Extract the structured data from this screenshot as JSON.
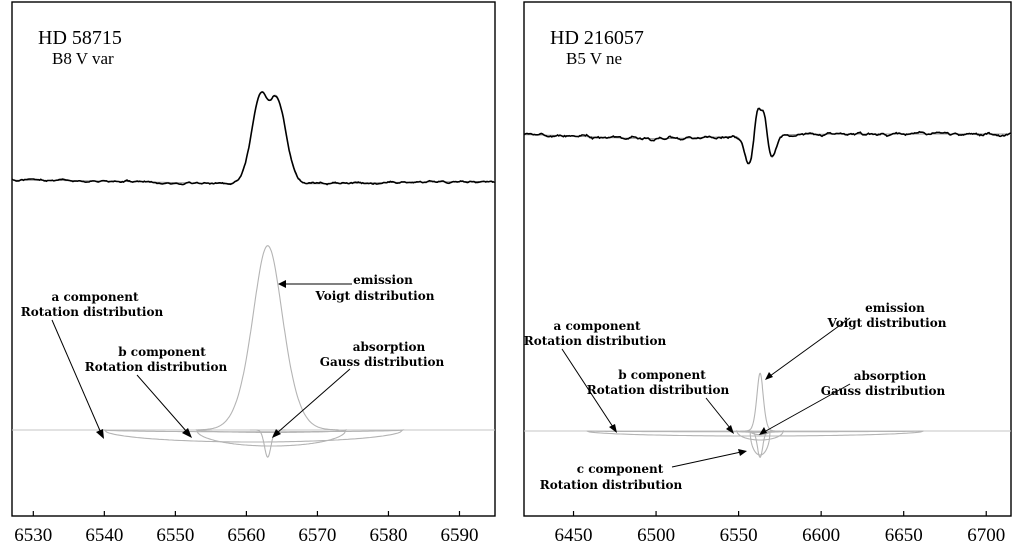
{
  "chart_data": [
    {
      "type": "line",
      "title": "HD 58715",
      "subtitle": "B8 V var",
      "xlim": [
        6527,
        6595
      ],
      "xticks": [
        6530,
        6540,
        6550,
        6560,
        6570,
        6580,
        6590
      ],
      "grid": false,
      "line_center": 6563,
      "spectrum": {
        "level": 1.0,
        "peaks": [
          {
            "x": 6561.9,
            "height": 2.4
          },
          {
            "x": 6564.4,
            "height": 2.35
          }
        ],
        "central_dip": 2.05
      },
      "components": [
        {
          "label": "a component",
          "distribution": "Rotation distribution",
          "center": 6561,
          "half_width": 21
        },
        {
          "label": "b component",
          "distribution": "Rotation distribution",
          "center": 6563.5,
          "half_width": 10.5
        },
        {
          "label": "emission",
          "distribution": "Voigt distribution",
          "center": 6563,
          "height": 1.9
        },
        {
          "label": "absorption",
          "distribution": "Gauss distribution",
          "center": 6563,
          "depth": 0.28
        }
      ]
    },
    {
      "type": "line",
      "title": "HD 216057",
      "subtitle": "B5 V ne",
      "xlim": [
        6420,
        6715
      ],
      "xticks": [
        6450,
        6500,
        6550,
        6600,
        6650,
        6700
      ],
      "grid": false,
      "line_center": 6563,
      "spectrum": {
        "level": 1.0,
        "peaks": [
          {
            "x": 6561.5,
            "height": 1.12
          },
          {
            "x": 6565.5,
            "height": 1.11
          }
        ],
        "troughs": [
          {
            "x": 6556,
            "depth": 0.88
          },
          {
            "x": 6570,
            "depth": 0.9
          }
        ]
      },
      "components": [
        {
          "label": "a component",
          "distribution": "Rotation distribution",
          "center": 6560,
          "half_width": 102
        },
        {
          "label": "b component",
          "distribution": "Rotation distribution",
          "center": 6563,
          "half_width": 14
        },
        {
          "label": "c component",
          "distribution": "Rotation distribution",
          "center": 6563,
          "half_width": 6
        },
        {
          "label": "emission",
          "distribution": "Voigt distribution",
          "center": 6563,
          "height": 0.55
        },
        {
          "label": "absorption",
          "distribution": "Gauss distribution",
          "center": 6563,
          "depth": 0.25
        }
      ]
    }
  ],
  "annotations": {
    "left": {
      "a_component": "a component",
      "a_distribution": "Rotation distribution",
      "b_component": "b component",
      "b_distribution": "Rotation distribution",
      "emission": "emission",
      "emission_distribution": "Voigt distribution",
      "absorption": "absorption",
      "absorption_distribution": "Gauss distribution"
    },
    "right": {
      "a_component": "a component",
      "a_distribution": "Rotation distribution",
      "b_component": "b component",
      "b_distribution": "Rotation distribution",
      "c_component": "c component",
      "c_distribution": "Rotation distribution",
      "emission": "emission",
      "emission_distribution": "Voigt distribution",
      "absorption": "absorption",
      "absorption_distribution": "Gauss distribution"
    }
  }
}
